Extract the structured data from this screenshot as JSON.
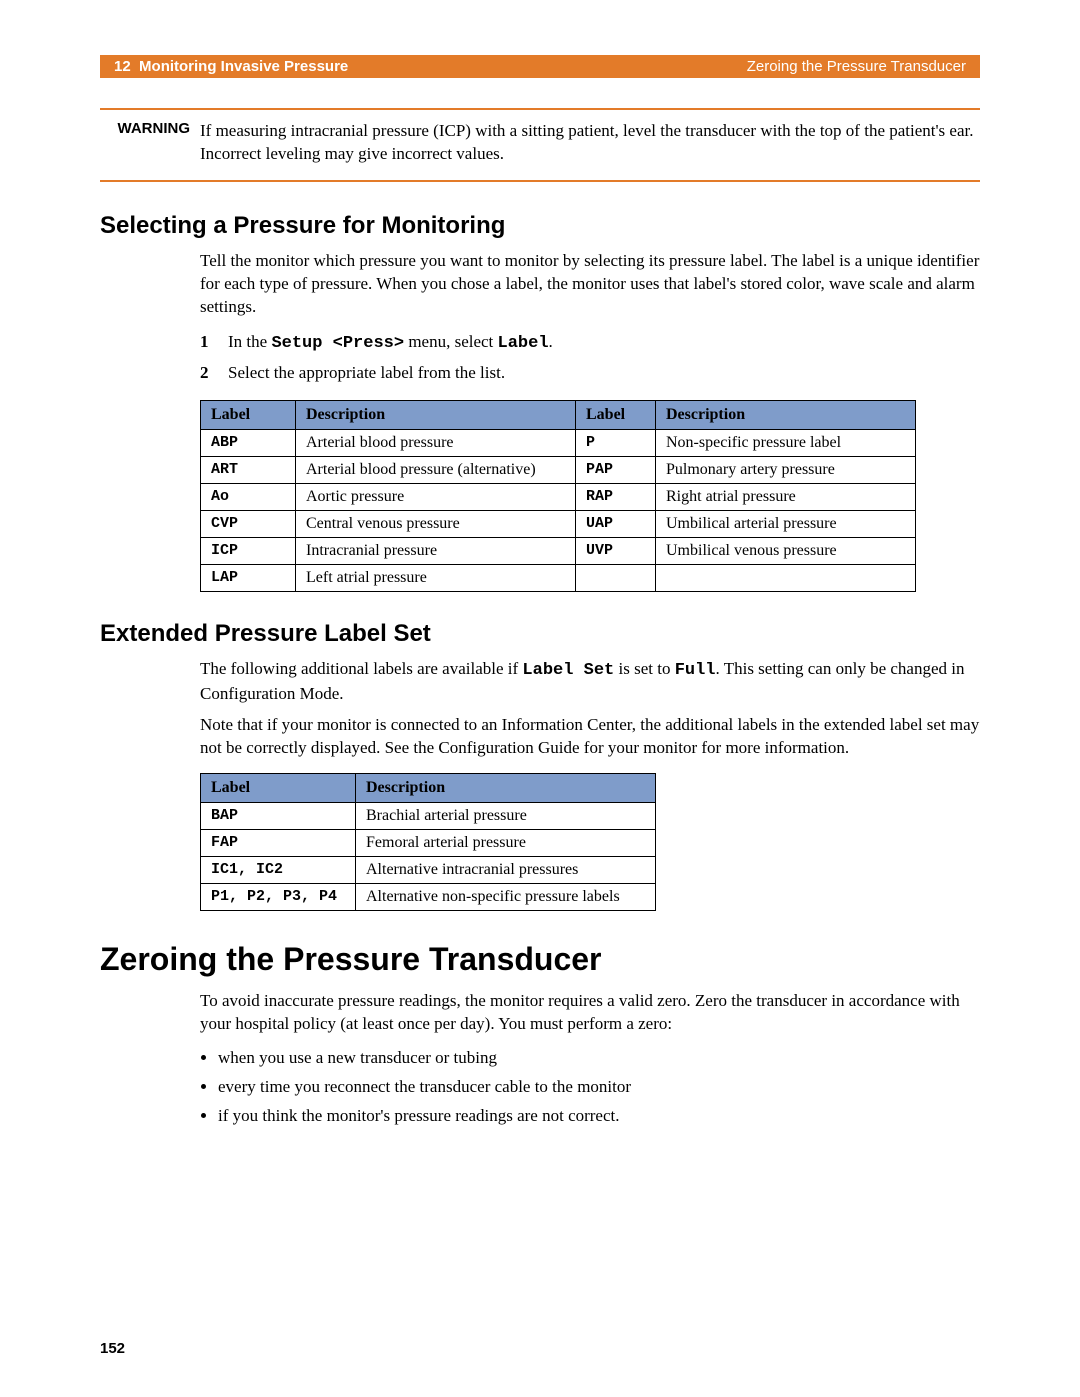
{
  "header": {
    "chapter_num": "12",
    "chapter_title": "Monitoring Invasive Pressure",
    "section_title": "Zeroing the Pressure Transducer"
  },
  "warning": {
    "label": "WARNING",
    "text": "If measuring intracranial pressure (ICP) with a sitting patient, level the transducer with the top of the patient's ear. Incorrect leveling may give incorrect values."
  },
  "section1": {
    "heading": "Selecting a Pressure for Monitoring",
    "para": "Tell the monitor which pressure you want to monitor by selecting its pressure label. The label is a unique identifier for each type of pressure. When you chose a label, the monitor uses that label's stored color, wave scale and alarm settings.",
    "step1_prefix": "In the ",
    "step1_mono1": "Setup <Press>",
    "step1_mid": " menu, select ",
    "step1_mono2": "Label",
    "step1_suffix": ".",
    "step2": "Select the appropriate label from the list.",
    "table_headers": {
      "label": "Label",
      "desc": "Description"
    },
    "rows": [
      {
        "l1": "ABP",
        "d1": "Arterial blood pressure",
        "l2": "P",
        "d2": "Non-specific pressure label"
      },
      {
        "l1": "ART",
        "d1": "Arterial blood pressure (alternative)",
        "l2": "PAP",
        "d2": "Pulmonary artery pressure"
      },
      {
        "l1": "Ao",
        "d1": "Aortic pressure",
        "l2": "RAP",
        "d2": "Right atrial pressure"
      },
      {
        "l1": "CVP",
        "d1": "Central venous pressure",
        "l2": "UAP",
        "d2": "Umbilical arterial pressure"
      },
      {
        "l1": "ICP",
        "d1": "Intracranial pressure",
        "l2": "UVP",
        "d2": "Umbilical venous pressure"
      },
      {
        "l1": "LAP",
        "d1": "Left atrial pressure",
        "l2": "",
        "d2": ""
      }
    ]
  },
  "section2": {
    "heading": "Extended Pressure Label Set",
    "para1_a": "The following additional labels are available if ",
    "para1_mono1": "Label Set",
    "para1_b": " is set to ",
    "para1_mono2": "Full",
    "para1_c": ". This setting can only be changed in Configuration Mode.",
    "para2": "Note that if your monitor is connected to an Information Center, the additional labels in the extended label set may not be correctly displayed. See the Configuration Guide for your monitor for more information.",
    "table_headers": {
      "label": "Label",
      "desc": "Description"
    },
    "rows": [
      {
        "l": "BAP",
        "d": "Brachial arterial pressure"
      },
      {
        "l": "FAP",
        "d": "Femoral arterial pressure"
      },
      {
        "l": "IC1, IC2",
        "d": "Alternative intracranial pressures"
      },
      {
        "l": "P1, P2, P3, P4",
        "d": "Alternative non-specific pressure labels"
      }
    ]
  },
  "section3": {
    "heading": "Zeroing the Pressure Transducer",
    "para": "To avoid inaccurate pressure readings, the monitor requires a valid zero. Zero the transducer in accordance with your hospital policy (at least once per day). You must perform a zero:",
    "bullets": [
      "when you use a new transducer or tubing",
      "every time you reconnect the transducer cable to the monitor",
      "if you think the monitor's pressure readings are not correct."
    ]
  },
  "page_number": "152",
  "colors": {
    "accent": "#e37b29",
    "table_header": "#7f9cca"
  }
}
